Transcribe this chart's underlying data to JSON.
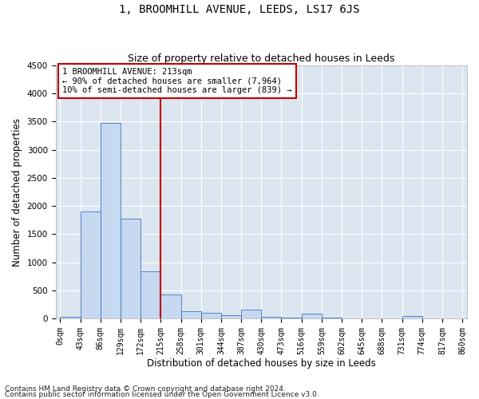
{
  "title": "1, BROOMHILL AVENUE, LEEDS, LS17 6JS",
  "subtitle": "Size of property relative to detached houses in Leeds",
  "xlabel": "Distribution of detached houses by size in Leeds",
  "ylabel": "Number of detached properties",
  "footer_line1": "Contains HM Land Registry data © Crown copyright and database right 2024.",
  "footer_line2": "Contains public sector information licensed under the Open Government Licence v3.0.",
  "annotation_line1": "1 BROOMHILL AVENUE: 213sqm",
  "annotation_line2": "← 90% of detached houses are smaller (7,964)",
  "annotation_line3": "10% of semi-detached houses are larger (839) →",
  "bin_edges": [
    0,
    43,
    86,
    129,
    172,
    215,
    258,
    301,
    344,
    387,
    430,
    473,
    516,
    559,
    602,
    645,
    688,
    731,
    774,
    817,
    860
  ],
  "bin_counts": [
    25,
    1900,
    3480,
    1780,
    840,
    430,
    130,
    95,
    55,
    155,
    35,
    20,
    90,
    8,
    5,
    3,
    2,
    45,
    0,
    0
  ],
  "bar_color": "#c6d9f0",
  "bar_edge_color": "#4472c4",
  "vline_color": "#c00000",
  "vline_x": 215,
  "annotation_box_color": "#c00000",
  "ylim": [
    0,
    4500
  ],
  "xlim_left": -10,
  "xlim_right": 870,
  "background_color": "#dce6f1",
  "grid_color": "#ffffff",
  "title_fontsize": 10,
  "subtitle_fontsize": 9,
  "tick_label_fontsize": 7,
  "axis_label_fontsize": 8.5,
  "annotation_fontsize": 7.5,
  "footer_fontsize": 6.5
}
